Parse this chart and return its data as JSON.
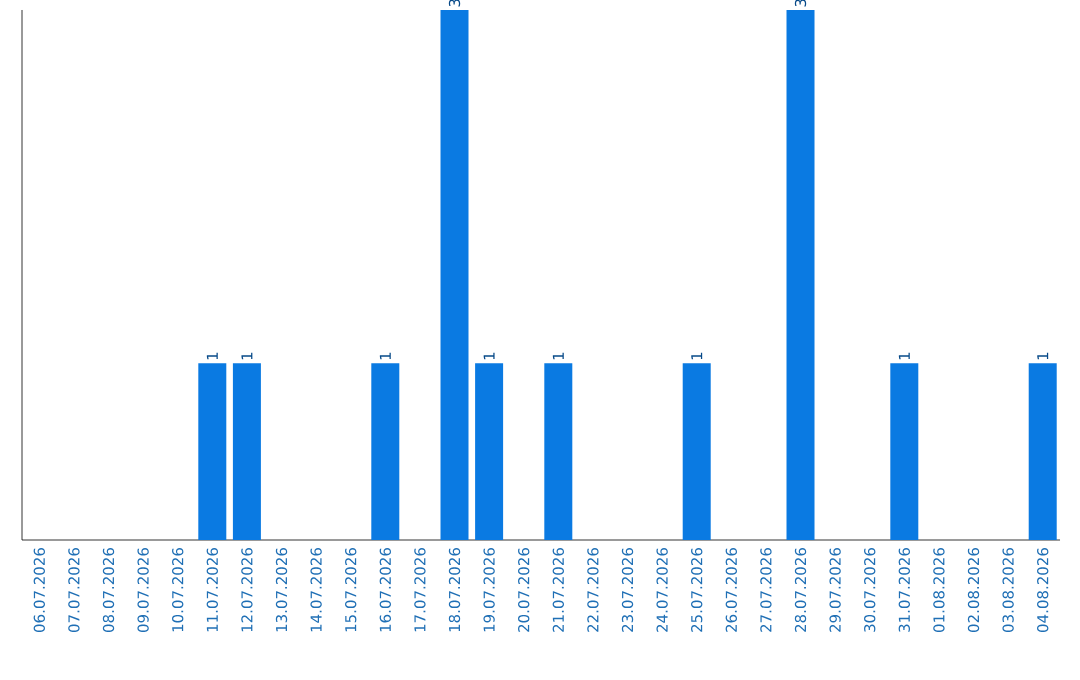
{
  "chart_data": {
    "type": "bar",
    "categories": [
      "06.07.2026",
      "07.07.2026",
      "08.07.2026",
      "09.07.2026",
      "10.07.2026",
      "11.07.2026",
      "12.07.2026",
      "13.07.2026",
      "14.07.2026",
      "15.07.2026",
      "16.07.2026",
      "17.07.2026",
      "18.07.2026",
      "19.07.2026",
      "20.07.2026",
      "21.07.2026",
      "22.07.2026",
      "23.07.2026",
      "24.07.2026",
      "25.07.2026",
      "26.07.2026",
      "27.07.2026",
      "28.07.2026",
      "29.07.2026",
      "30.07.2026",
      "31.07.2026",
      "01.08.2026",
      "02.08.2026",
      "03.08.2026",
      "04.08.2026"
    ],
    "values": [
      0,
      0,
      0,
      0,
      0,
      1,
      1,
      0,
      0,
      0,
      1,
      0,
      3,
      1,
      0,
      1,
      0,
      0,
      0,
      1,
      0,
      0,
      3,
      0,
      0,
      1,
      0,
      0,
      0,
      1
    ],
    "value_labels": [
      null,
      null,
      null,
      null,
      null,
      "1",
      "1",
      null,
      null,
      null,
      "1",
      null,
      "3",
      "1",
      null,
      "1",
      null,
      null,
      null,
      "1",
      null,
      null,
      "3",
      null,
      null,
      "1",
      null,
      null,
      null,
      "1"
    ],
    "color": "#0a7ae2",
    "tick_labels": "x"
  }
}
